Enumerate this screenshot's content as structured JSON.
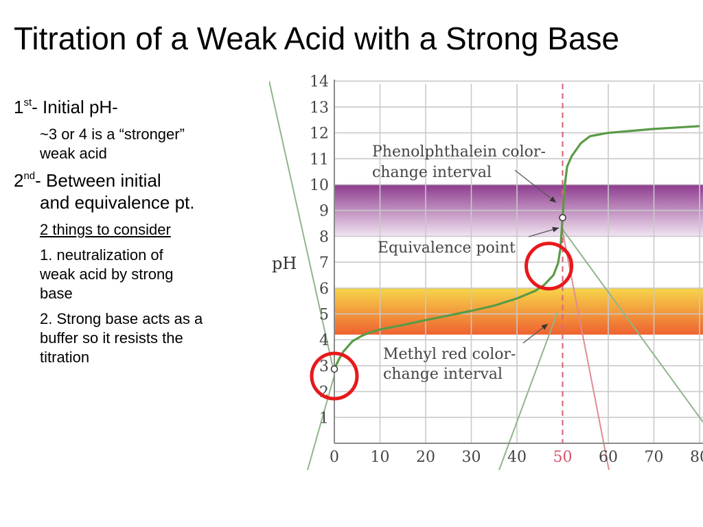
{
  "slide": {
    "title": "Titration of a Weak Acid with a Strong Base"
  },
  "bullets": {
    "b1_number": "1",
    "b1_sup": "st",
    "b1_text": "- Initial pH-",
    "b1_sub_line1": "~3 or 4 is a “stronger”",
    "b1_sub_line2": "weak acid",
    "b2_number": "2",
    "b2_sup": "nd",
    "b2_line1": "- Between initial",
    "b2_line2": "and equivalence pt.",
    "b2_sub_heading": "2 things to consider",
    "b2_item1_line1": "1.  neutralization of",
    "b2_item1_line2": "weak acid by strong",
    "b2_item1_line3": "base",
    "b2_item2_line1": "2.  Strong base acts as a",
    "b2_item2_line2": "buffer so it resists the",
    "b2_item2_line3": "titration"
  },
  "chart_data": {
    "type": "line",
    "ylabel": "pH",
    "xlabel": "",
    "ylim": [
      0,
      14
    ],
    "xlim": [
      0,
      80
    ],
    "yticks": [
      "1",
      "2",
      "3",
      "4",
      "5",
      "6",
      "7",
      "8",
      "9",
      "10",
      "11",
      "12",
      "13",
      "14"
    ],
    "xticks": [
      "0",
      "10",
      "20",
      "30",
      "40",
      "50",
      "60",
      "70",
      "80"
    ],
    "grid": true,
    "series": [
      {
        "color": "#5a9a46",
        "x": [
          0,
          1,
          2,
          4,
          6,
          8,
          10,
          15,
          20,
          25,
          30,
          35,
          40,
          44,
          46,
          48,
          49,
          49.5,
          50,
          50.5,
          51,
          52,
          54,
          56,
          60,
          70,
          80
        ],
        "y": [
          2.87,
          3.25,
          3.55,
          3.95,
          4.15,
          4.3,
          4.4,
          4.57,
          4.76,
          4.94,
          5.12,
          5.32,
          5.6,
          5.89,
          6.13,
          6.5,
          6.96,
          7.5,
          8.72,
          10.0,
          10.7,
          11.1,
          11.6,
          11.87,
          12.0,
          12.15,
          12.26
        ]
      }
    ],
    "markers": [
      {
        "x": 0,
        "y": 2.87
      },
      {
        "x": 50,
        "y": 8.72
      }
    ],
    "equivalence_x": 50,
    "bands": [
      {
        "name": "Phenolphthalein color-change interval",
        "ymin": 8.0,
        "ymax": 10.0,
        "top_color": "#8e3c8e",
        "bottom_color": "#f1e4f1"
      },
      {
        "name": "Methyl red color-change interval",
        "ymin": 4.2,
        "ymax": 6.0,
        "top_color": "#f7d64a",
        "bottom_color": "#ee6230"
      }
    ],
    "annotations": [
      {
        "line1": "Phenolphthalein color-",
        "line2": "change interval"
      },
      {
        "line1": "Equivalence point",
        "line2": ""
      },
      {
        "line1": "Methyl red color-",
        "line2": "change interval"
      }
    ],
    "highlight_circles": [
      {
        "x": 0,
        "y": 2.6,
        "color": "#e8181c"
      },
      {
        "x": 47,
        "y": 6.85,
        "color": "#e8181c"
      }
    ]
  }
}
